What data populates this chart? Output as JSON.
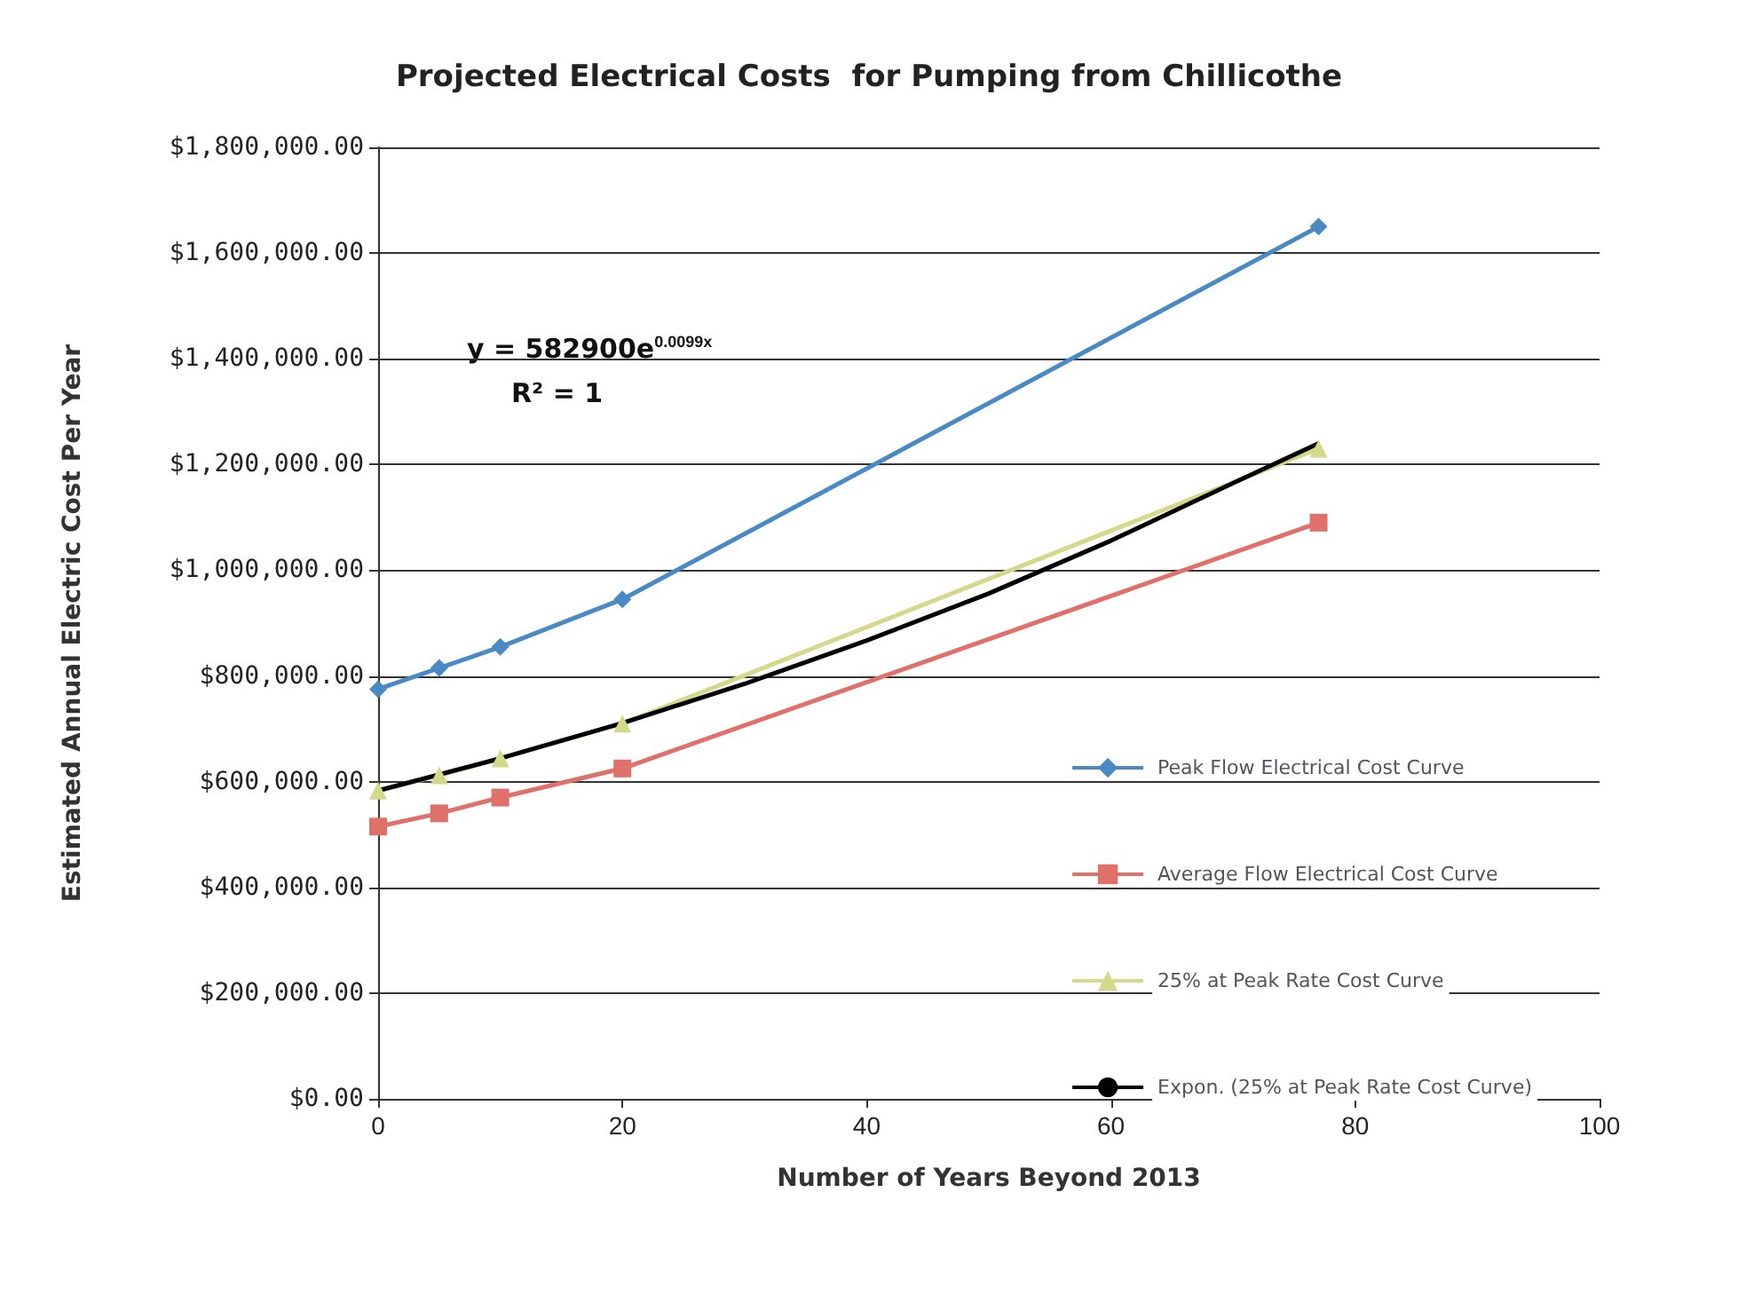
{
  "chart_data": {
    "type": "line",
    "title": "Projected Electrical Costs  for Pumping from Chillicothe",
    "xlabel": "Number of Years Beyond 2013",
    "ylabel": "Estimated Annual Electric Cost Per Year",
    "x": [
      0,
      5,
      10,
      20,
      77
    ],
    "xlim": [
      0,
      100
    ],
    "xticks": [
      0,
      20,
      40,
      60,
      80,
      100
    ],
    "ylim": [
      0,
      1800000
    ],
    "yticks": [
      {
        "value": 0,
        "label": "$0.00"
      },
      {
        "value": 200000,
        "label": "$200,000.00"
      },
      {
        "value": 400000,
        "label": "$400,000.00"
      },
      {
        "value": 600000,
        "label": "$600,000.00"
      },
      {
        "value": 800000,
        "label": "$800,000.00"
      },
      {
        "value": 1000000,
        "label": "$1,000,000.00"
      },
      {
        "value": 1200000,
        "label": "$1,200,000.00"
      },
      {
        "value": 1400000,
        "label": "$1,400,000.00"
      },
      {
        "value": 1600000,
        "label": "$1,600,000.00"
      },
      {
        "value": 1800000,
        "label": "$1,800,000.00"
      }
    ],
    "grid": "y",
    "legend": "right",
    "annotations": [
      "y = 582900e$^{0.0099x}$",
      "R² = 1"
    ],
    "series": [
      {
        "name": "Peak Flow Electrical Cost Curve",
        "color": "#4a8ac4",
        "marker": "diamond",
        "values": [
          775000,
          815000,
          855000,
          945000,
          1650000
        ]
      },
      {
        "name": "Average Flow Electrical Cost Curve",
        "color": "#e0706a",
        "marker": "square",
        "values": [
          515000,
          540000,
          570000,
          625000,
          1090000
        ]
      },
      {
        "name": "25% at Peak Rate Cost Curve",
        "color": "#d4d98a",
        "marker": "triangle",
        "values": [
          583000,
          612000,
          644000,
          710000,
          1230000
        ]
      },
      {
        "name": "Expon. (25% at Peak Rate Cost Curve)",
        "color": "#000000",
        "marker": "none",
        "x": [
          0,
          10,
          20,
          30,
          40,
          50,
          60,
          70,
          77
        ],
        "values": [
          583000,
          644000,
          711000,
          785000,
          867000,
          956000,
          1056000,
          1165000,
          1240000
        ]
      }
    ]
  }
}
